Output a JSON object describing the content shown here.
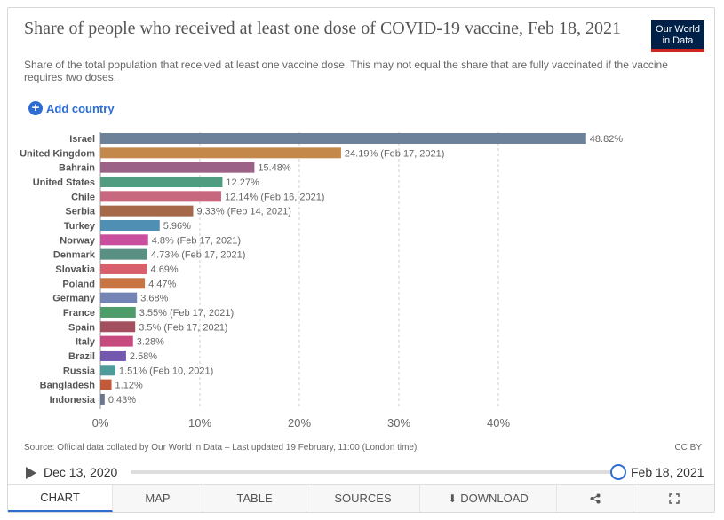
{
  "header": {
    "title": "Share of people who received at least one dose of COVID-19 vaccine, Feb 18, 2021",
    "subtitle": "Share of the total population that received at least one vaccine dose. This may not equal the share that are fully vaccinated if the vaccine requires two doses.",
    "logo_line1": "Our World",
    "logo_line2": "in Data",
    "add_country": "Add country"
  },
  "chart_data": {
    "type": "bar",
    "orientation": "horizontal",
    "categories": [
      "Israel",
      "United Kingdom",
      "Bahrain",
      "United States",
      "Chile",
      "Serbia",
      "Turkey",
      "Norway",
      "Denmark",
      "Slovakia",
      "Poland",
      "Germany",
      "France",
      "Spain",
      "Italy",
      "Brazil",
      "Russia",
      "Bangladesh",
      "Indonesia"
    ],
    "values": [
      48.82,
      24.19,
      15.48,
      12.27,
      12.14,
      9.33,
      5.96,
      4.8,
      4.73,
      4.69,
      4.47,
      3.68,
      3.55,
      3.5,
      3.28,
      2.58,
      1.51,
      1.12,
      0.43
    ],
    "value_labels": [
      "48.82%",
      "24.19% (Feb 17, 2021)",
      "15.48%",
      "12.27%",
      "12.14% (Feb 16, 2021)",
      "9.33% (Feb 14, 2021)",
      "5.96%",
      "4.8% (Feb 17, 2021)",
      "4.73% (Feb 17, 2021)",
      "4.69%",
      "4.47%",
      "3.68%",
      "3.55% (Feb 17, 2021)",
      "3.5% (Feb 17, 2021)",
      "3.28%",
      "2.58%",
      "1.51% (Feb 10, 2021)",
      "1.12%",
      "0.43%"
    ],
    "colors": [
      "#6d8299",
      "#c4884a",
      "#9c6186",
      "#4f9c80",
      "#c8687e",
      "#a5694a",
      "#4f8fb4",
      "#c94f9e",
      "#5a8f84",
      "#d8606c",
      "#c87443",
      "#7485b5",
      "#4d9c69",
      "#a34f5f",
      "#c74a7f",
      "#7458b0",
      "#4f9d9b",
      "#c25a3a",
      "#6a7790"
    ],
    "xlim": [
      0,
      50
    ],
    "xticks": [
      "0%",
      "10%",
      "20%",
      "30%",
      "40%"
    ],
    "xtick_values": [
      0,
      10,
      20,
      30,
      40
    ],
    "grid": true
  },
  "footer": {
    "source": "Source: Official data collated by Our World in Data – Last updated 19 February, 11:00 (London time)",
    "license": "CC BY"
  },
  "timeline": {
    "start": "Dec 13, 2020",
    "end": "Feb 18, 2021",
    "position": 1.0
  },
  "tabs": [
    "CHART",
    "MAP",
    "TABLE",
    "SOURCES",
    "DOWNLOAD"
  ],
  "icons": {
    "share": "share-icon",
    "fullscreen": "fullscreen-icon"
  }
}
